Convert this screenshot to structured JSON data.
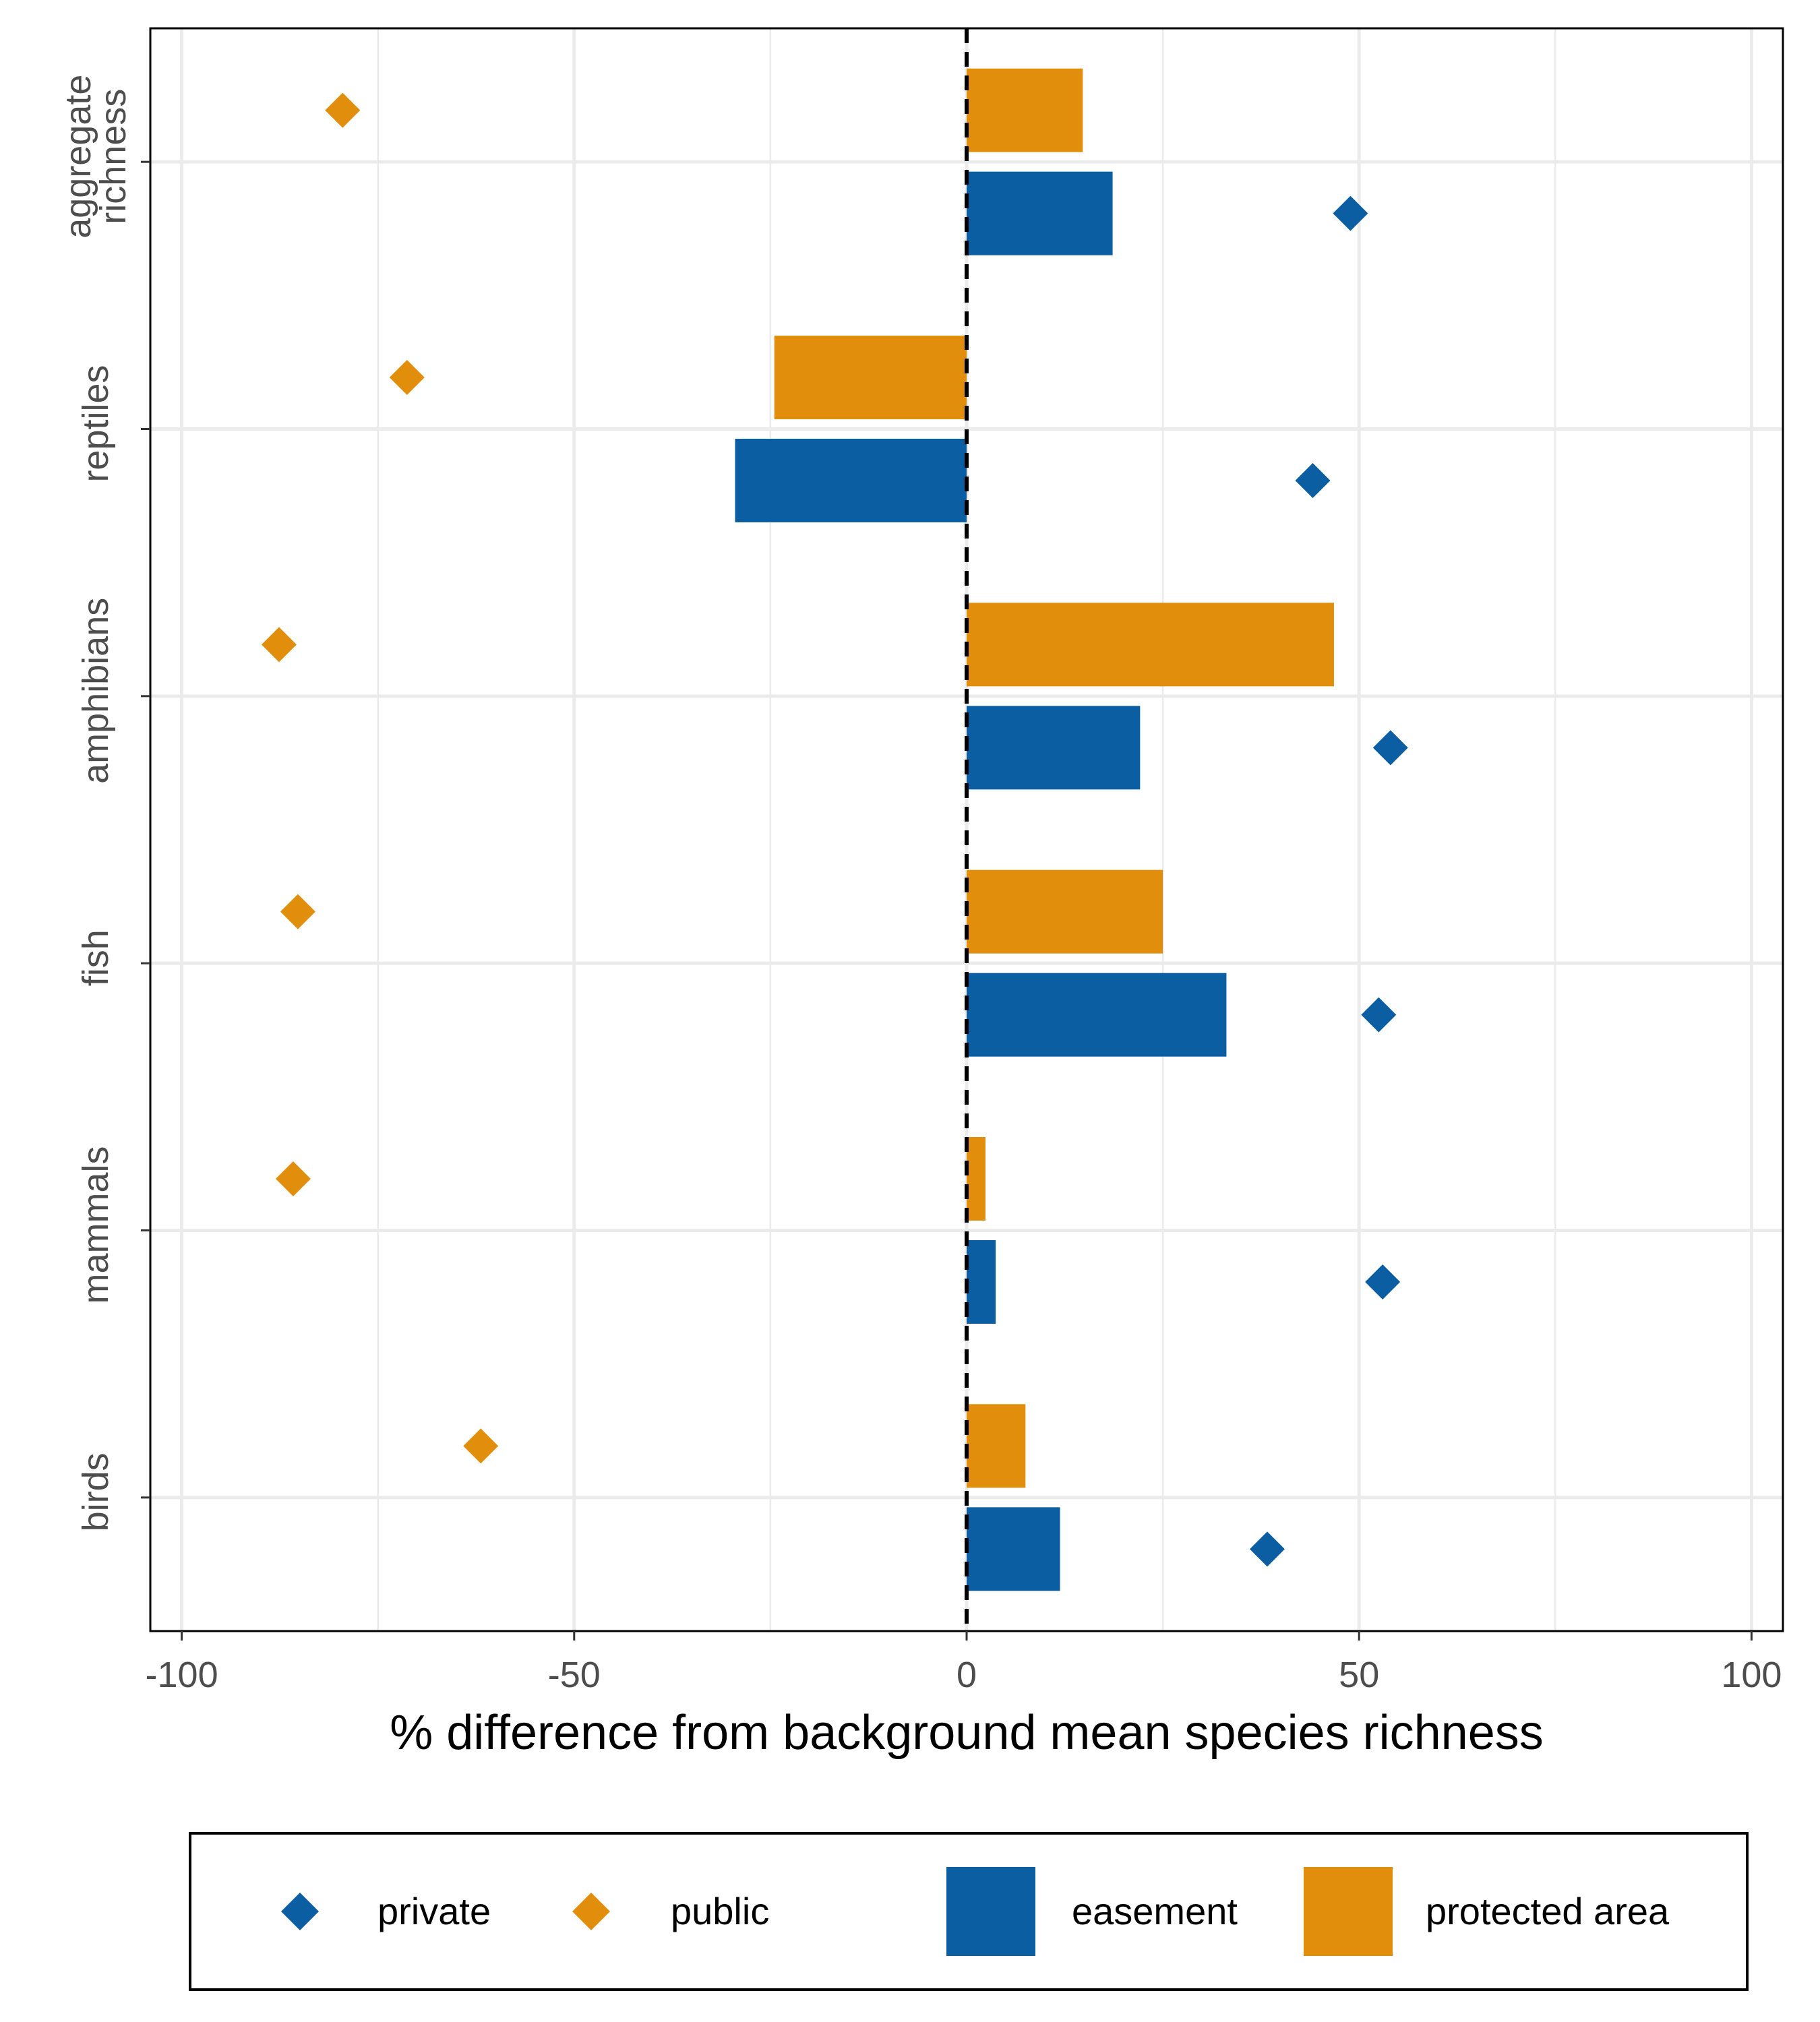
{
  "chart_data": {
    "type": "bar",
    "orientation": "horizontal",
    "xlabel": "% difference from background mean species richness",
    "xlim": [
      -104,
      104
    ],
    "xticks": [
      -100,
      -50,
      0,
      50,
      100
    ],
    "xtick_labels": [
      "-100",
      "-50",
      "0",
      "50",
      "100"
    ],
    "grid": true,
    "reference_line": 0,
    "categories": [
      {
        "key": "aggregate",
        "lines": [
          "aggregate",
          "richness"
        ]
      },
      {
        "key": "reptiles",
        "lines": [
          "reptiles"
        ]
      },
      {
        "key": "amphibians",
        "lines": [
          "amphibians"
        ]
      },
      {
        "key": "fish",
        "lines": [
          "fish"
        ]
      },
      {
        "key": "mammals",
        "lines": [
          "mammals"
        ]
      },
      {
        "key": "birds",
        "lines": [
          "birds"
        ]
      }
    ],
    "bar_series": [
      {
        "name": "protected area",
        "color": "#E08E0B",
        "values": [
          14.8,
          -24.5,
          46.8,
          25.0,
          2.4,
          7.5
        ]
      },
      {
        "name": "easement",
        "color": "#0B5EA2",
        "values": [
          18.6,
          -29.5,
          22.1,
          33.1,
          3.7,
          11.9
        ]
      }
    ],
    "point_series": [
      {
        "name": "public",
        "color": "#E08E0B",
        "marker": "diamond",
        "values": [
          -79.5,
          -71.3,
          -87.6,
          -85.2,
          -85.8,
          -61.9
        ]
      },
      {
        "name": "private",
        "color": "#0B5EA2",
        "marker": "diamond",
        "values": [
          48.9,
          44.1,
          54.0,
          52.5,
          53.0,
          38.3
        ]
      }
    ],
    "legend": {
      "position": "bottom",
      "items": [
        {
          "label": "private",
          "kind": "diamond",
          "color": "#0B5EA2"
        },
        {
          "label": "public",
          "kind": "diamond",
          "color": "#E08E0B"
        },
        {
          "label": "easement",
          "kind": "square",
          "color": "#0B5EA2"
        },
        {
          "label": "protected area",
          "kind": "square",
          "color": "#E08E0B"
        }
      ]
    }
  }
}
